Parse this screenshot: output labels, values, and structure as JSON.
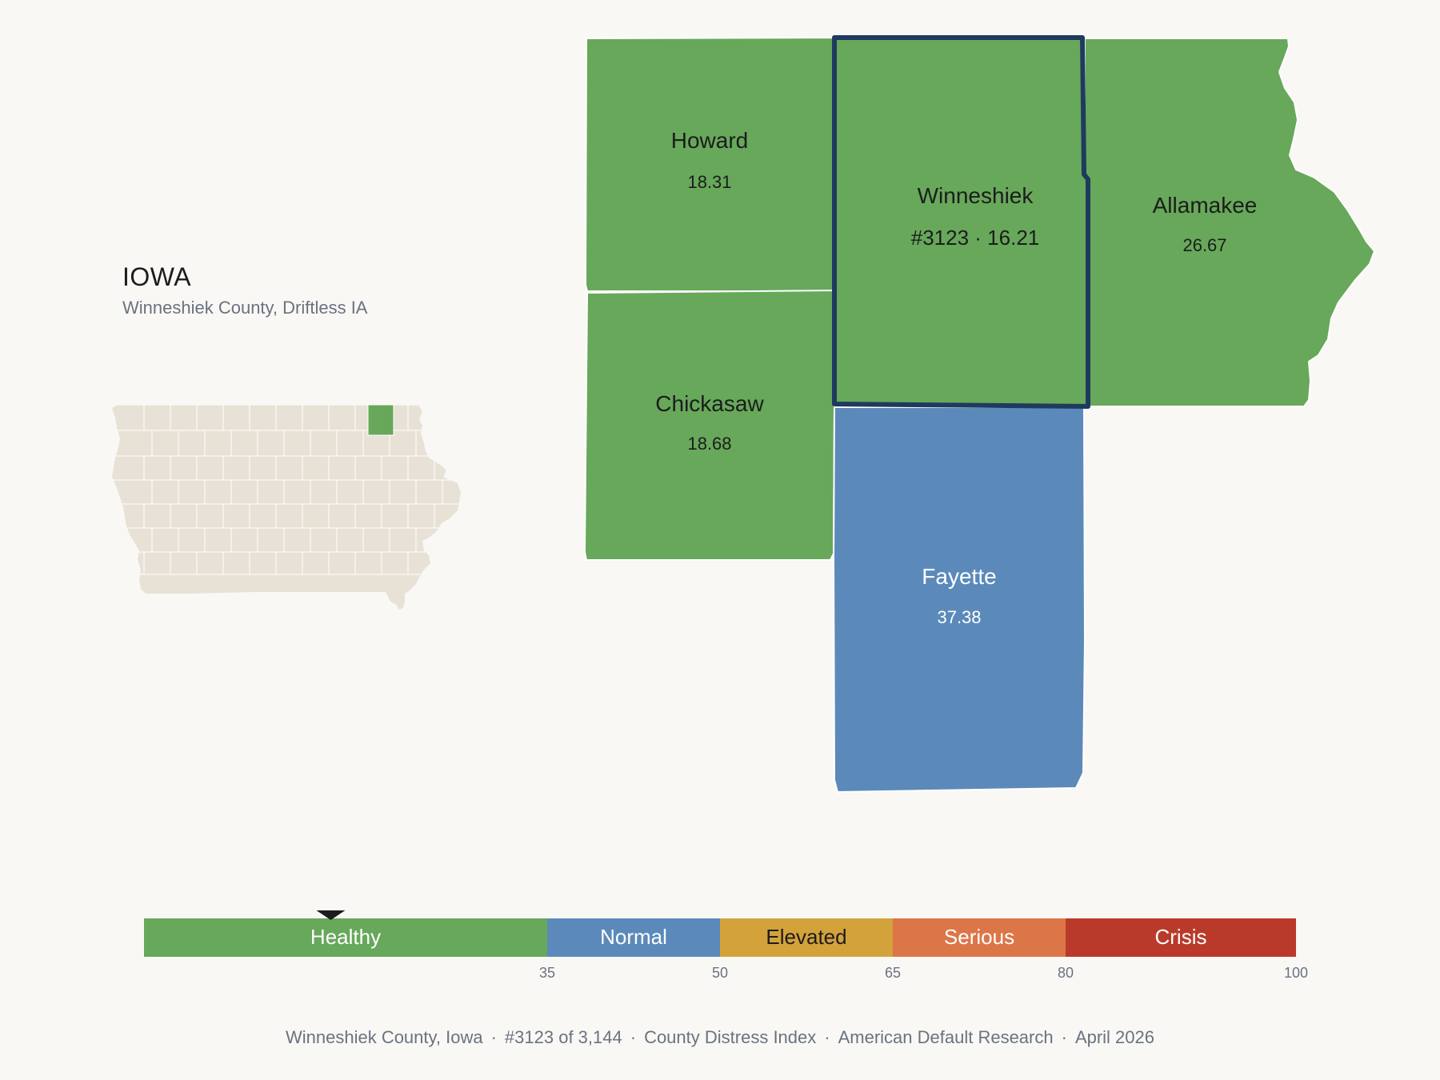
{
  "state": {
    "title": "IOWA",
    "subtitle": "Winneshiek County, Driftless IA"
  },
  "counties": [
    {
      "name": "Howard",
      "label": "18.31",
      "value": 18.31,
      "category": "Healthy"
    },
    {
      "name": "Winneshiek",
      "label": "#3123 · 16.21",
      "value": 16.21,
      "category": "Healthy",
      "selected": true
    },
    {
      "name": "Allamakee",
      "label": "26.67",
      "value": 26.67,
      "category": "Healthy"
    },
    {
      "name": "Chickasaw",
      "label": "18.68",
      "value": 18.68,
      "category": "Healthy"
    },
    {
      "name": "Fayette",
      "label": "37.38",
      "value": 37.38,
      "category": "Normal"
    }
  ],
  "scale": {
    "marker_value": 16.21,
    "bands": [
      {
        "label": "Healthy",
        "from": 0,
        "to": 35,
        "color": "#67a85a"
      },
      {
        "label": "Normal",
        "from": 35,
        "to": 50,
        "color": "#5b8aba"
      },
      {
        "label": "Elevated",
        "from": 50,
        "to": 65,
        "color": "#d3a23a"
      },
      {
        "label": "Serious",
        "from": 65,
        "to": 80,
        "color": "#dc7648"
      },
      {
        "label": "Crisis",
        "from": 80,
        "to": 100,
        "color": "#b93a2b"
      }
    ],
    "ticks": [
      "35",
      "50",
      "65",
      "80",
      "100"
    ]
  },
  "colors": {
    "healthy": "#67a85a",
    "normal": "#5b8aba",
    "selected_outline": "#1f3a5f",
    "state_fill": "#e8e2d6"
  },
  "footer": [
    "Winneshiek County, Iowa",
    "#3123 of 3,144",
    "County Distress Index",
    "American Default Research",
    "April 2026"
  ]
}
